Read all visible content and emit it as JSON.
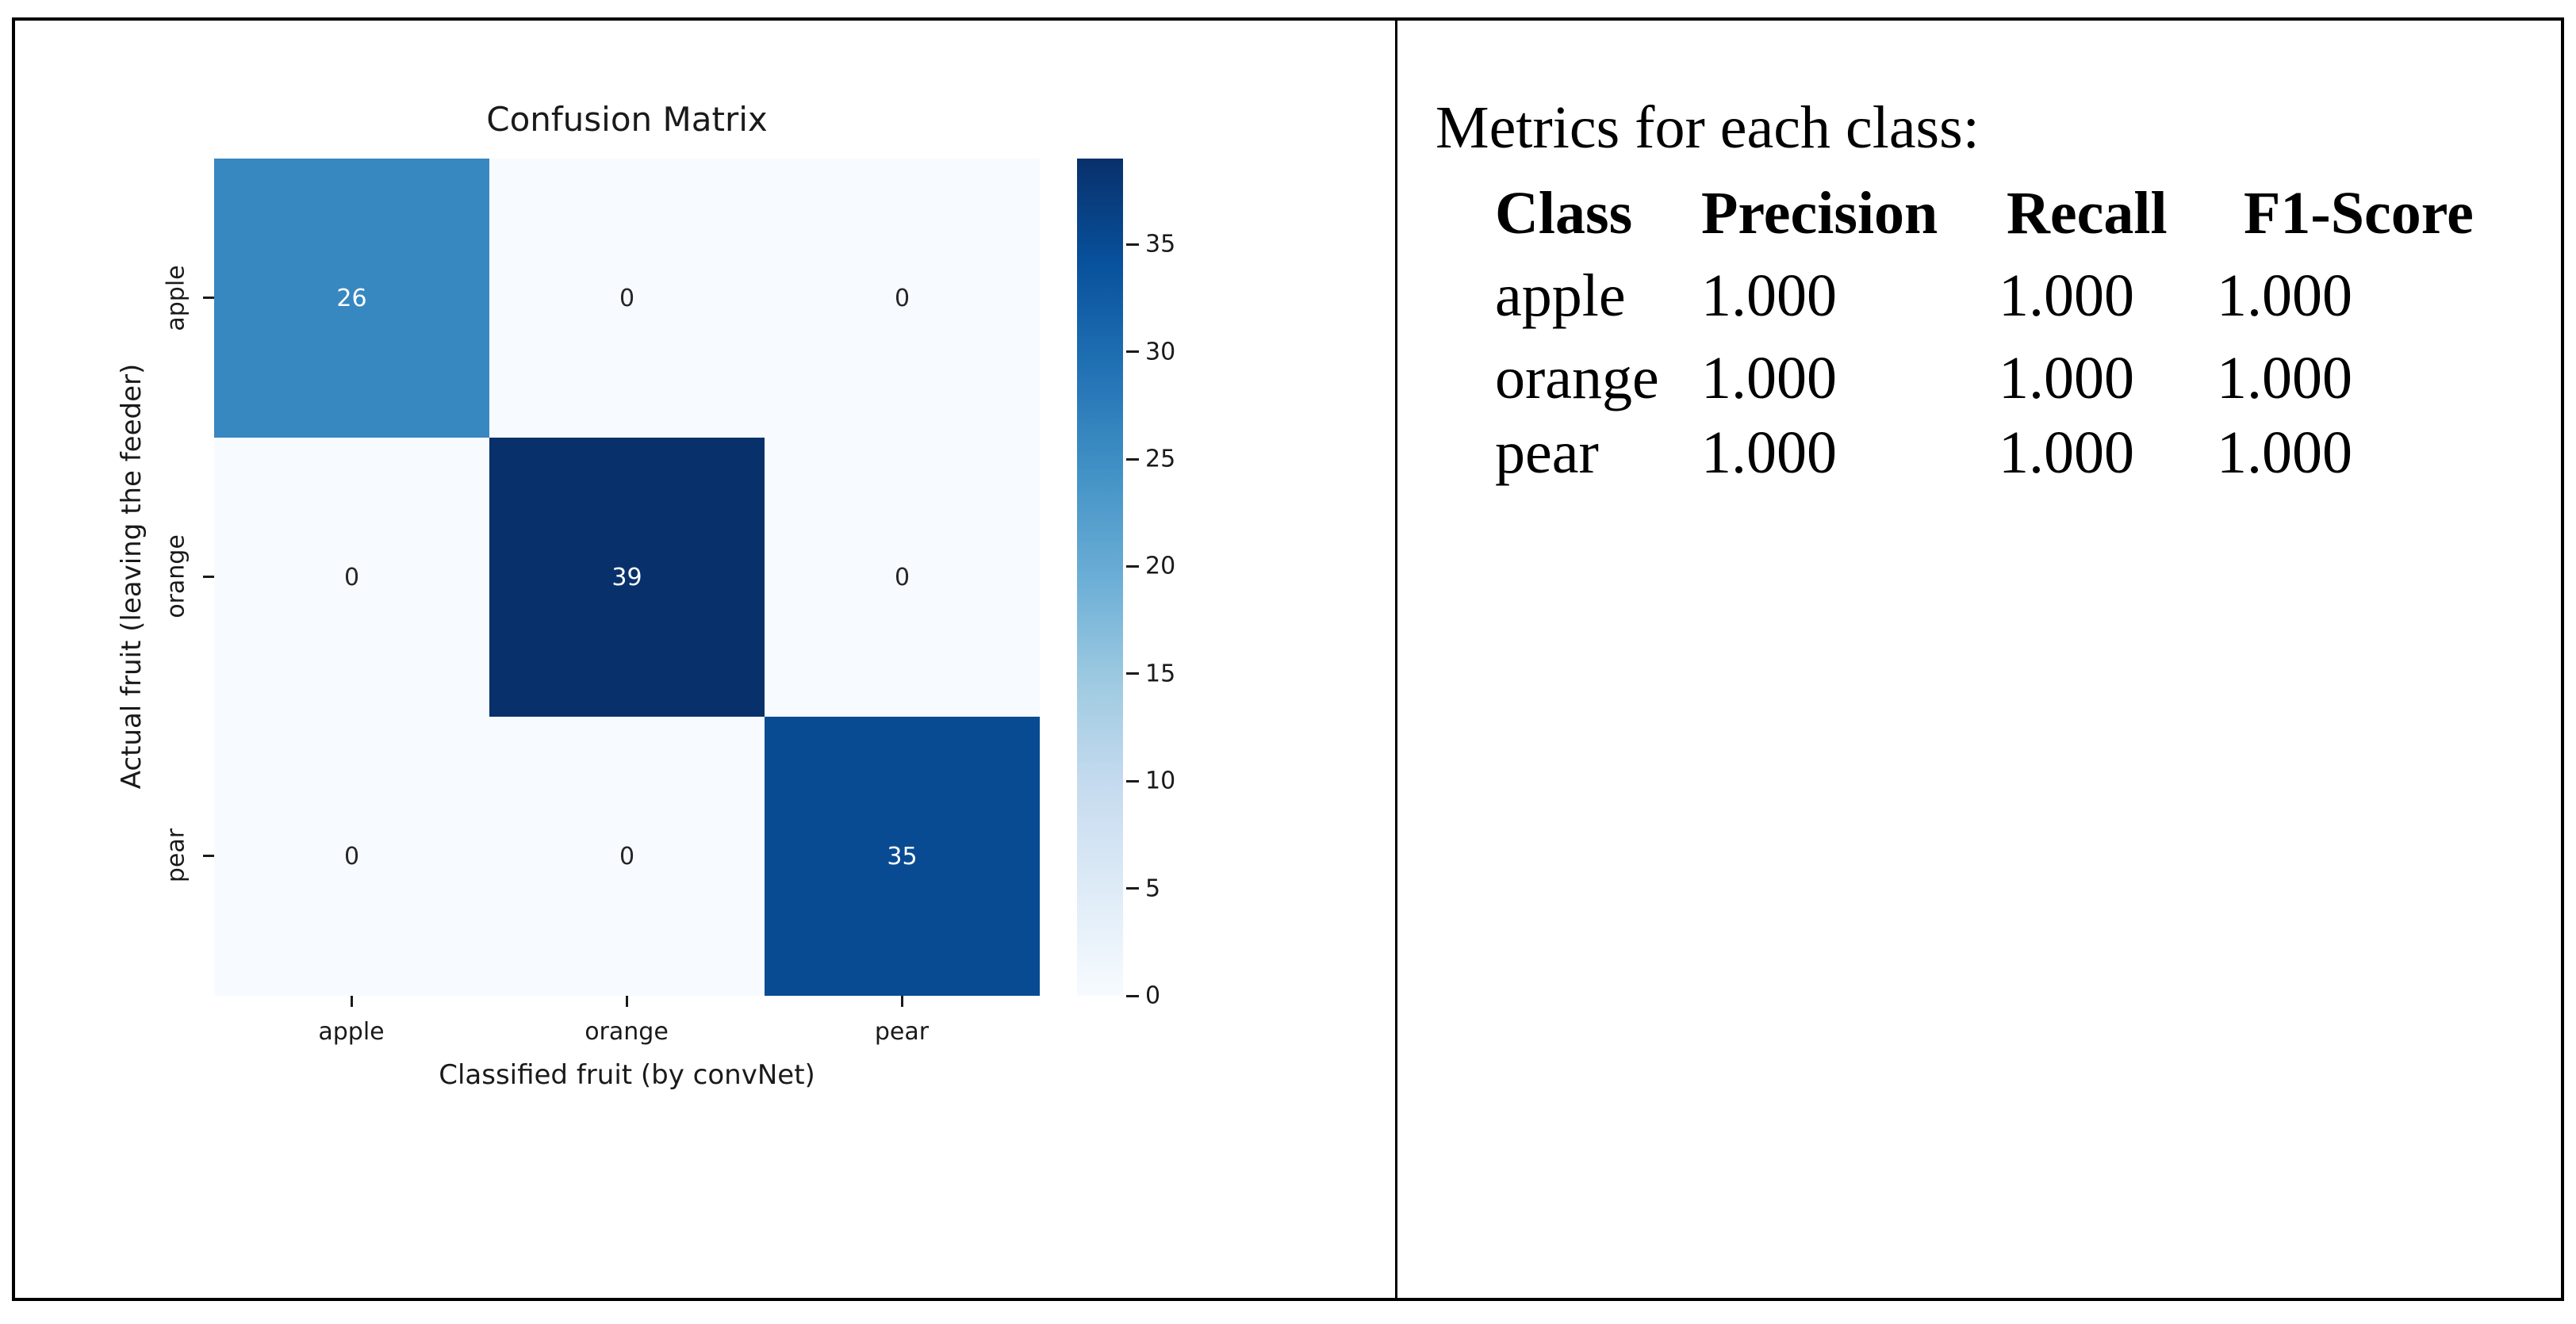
{
  "chart_data": {
    "type": "heatmap",
    "title": "Confusion Matrix",
    "xlabel": "Classified fruit (by convNet)",
    "ylabel": "Actual fruit (leaving the feeder)",
    "x_categories": [
      "apple",
      "orange",
      "pear"
    ],
    "y_categories": [
      "apple",
      "orange",
      "pear"
    ],
    "values": [
      [
        26,
        0,
        0
      ],
      [
        0,
        39,
        0
      ],
      [
        0,
        0,
        35
      ]
    ],
    "vmin": 0,
    "vmax": 39,
    "colormap": "Blues",
    "colormap_stops": [
      "#f7fbff",
      "#deebf7",
      "#c6dbef",
      "#9ecae1",
      "#6baed6",
      "#4292c6",
      "#2171b5",
      "#08519c",
      "#08306b"
    ],
    "cell_colors": [
      [
        "#3787c0",
        "#f7fbff",
        "#f7fbff"
      ],
      [
        "#f7fbff",
        "#08306b",
        "#f7fbff"
      ],
      [
        "#f7fbff",
        "#f7fbff",
        "#084b93"
      ]
    ],
    "annot_colors": [
      [
        "#ffffff",
        "#262626",
        "#262626"
      ],
      [
        "#262626",
        "#ffffff",
        "#262626"
      ],
      [
        "#262626",
        "#262626",
        "#ffffff"
      ]
    ],
    "colorbar_ticks": [
      0,
      5,
      10,
      15,
      20,
      25,
      30,
      35
    ],
    "legend_position": "right-colorbar",
    "grid": false,
    "axis_text_color": "#1a1a1a"
  },
  "metrics_panel": {
    "intro": "Metrics for each class:",
    "table": {
      "headers": [
        "Class",
        "Precision",
        "Recall",
        "F1-Score"
      ],
      "rows": [
        {
          "class": "apple",
          "precision": "1.000",
          "recall": "1.000",
          "f1": "1.000"
        },
        {
          "class": "orange",
          "precision": "1.000",
          "recall": "1.000",
          "f1": "1.000"
        },
        {
          "class": "pear",
          "precision": "1.000",
          "recall": "1.000",
          "f1": "1.000"
        }
      ]
    }
  },
  "frame": {
    "border_color": "#000000",
    "background": "#ffffff"
  }
}
